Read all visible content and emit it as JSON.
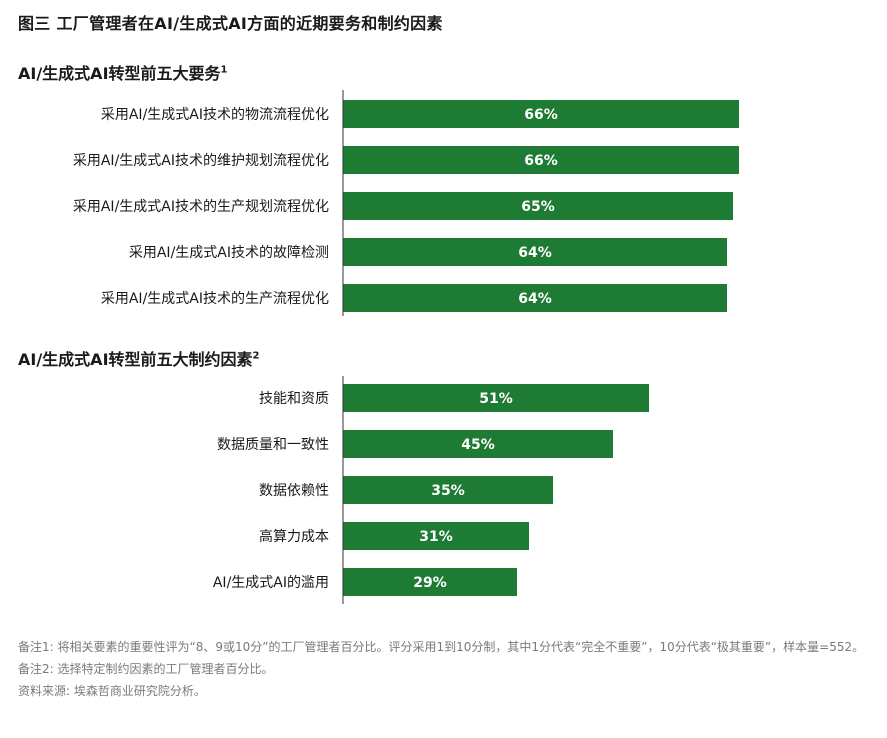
{
  "figure_title": "图三  工厂管理者在AI/生成式AI方面的近期要务和制约因素",
  "chart_data": [
    {
      "type": "bar",
      "orientation": "horizontal",
      "title": "AI/生成式AI转型前五大要务",
      "title_sup": "1",
      "categories": [
        "采用AI/生成式AI技术的物流流程优化",
        "采用AI/生成式AI技术的维护规划流程优化",
        "采用AI/生成式AI技术的生产规划流程优化",
        "采用AI/生成式AI技术的故障检测",
        "采用AI/生成式AI技术的生产流程优化"
      ],
      "values": [
        66,
        66,
        65,
        64,
        64
      ],
      "value_labels": [
        "66%",
        "66%",
        "65%",
        "64%",
        "64%"
      ],
      "xlim": [
        0,
        100
      ],
      "grid": false,
      "bar_color": "#1e7b34"
    },
    {
      "type": "bar",
      "orientation": "horizontal",
      "title": "AI/生成式AI转型前五大制约因素",
      "title_sup": "2",
      "categories": [
        "技能和资质",
        "数据质量和一致性",
        "数据依赖性",
        "高算力成本",
        "AI/生成式AI的滥用"
      ],
      "values": [
        51,
        45,
        35,
        31,
        29
      ],
      "value_labels": [
        "51%",
        "45%",
        "35%",
        "31%",
        "29%"
      ],
      "xlim": [
        0,
        100
      ],
      "grid": false,
      "bar_color": "#1e7b34"
    }
  ],
  "notes": {
    "note1": "备注1: 将相关要素的重要性评为“8、9或10分”的工厂管理者百分比。评分采用1到10分制，其中1分代表“完全不重要”，10分代表“极其重要”，样本量=552。",
    "note2": "备注2: 选择特定制约因素的工厂管理者百分比。",
    "source": "资料来源: 埃森哲商业研究院分析。"
  }
}
